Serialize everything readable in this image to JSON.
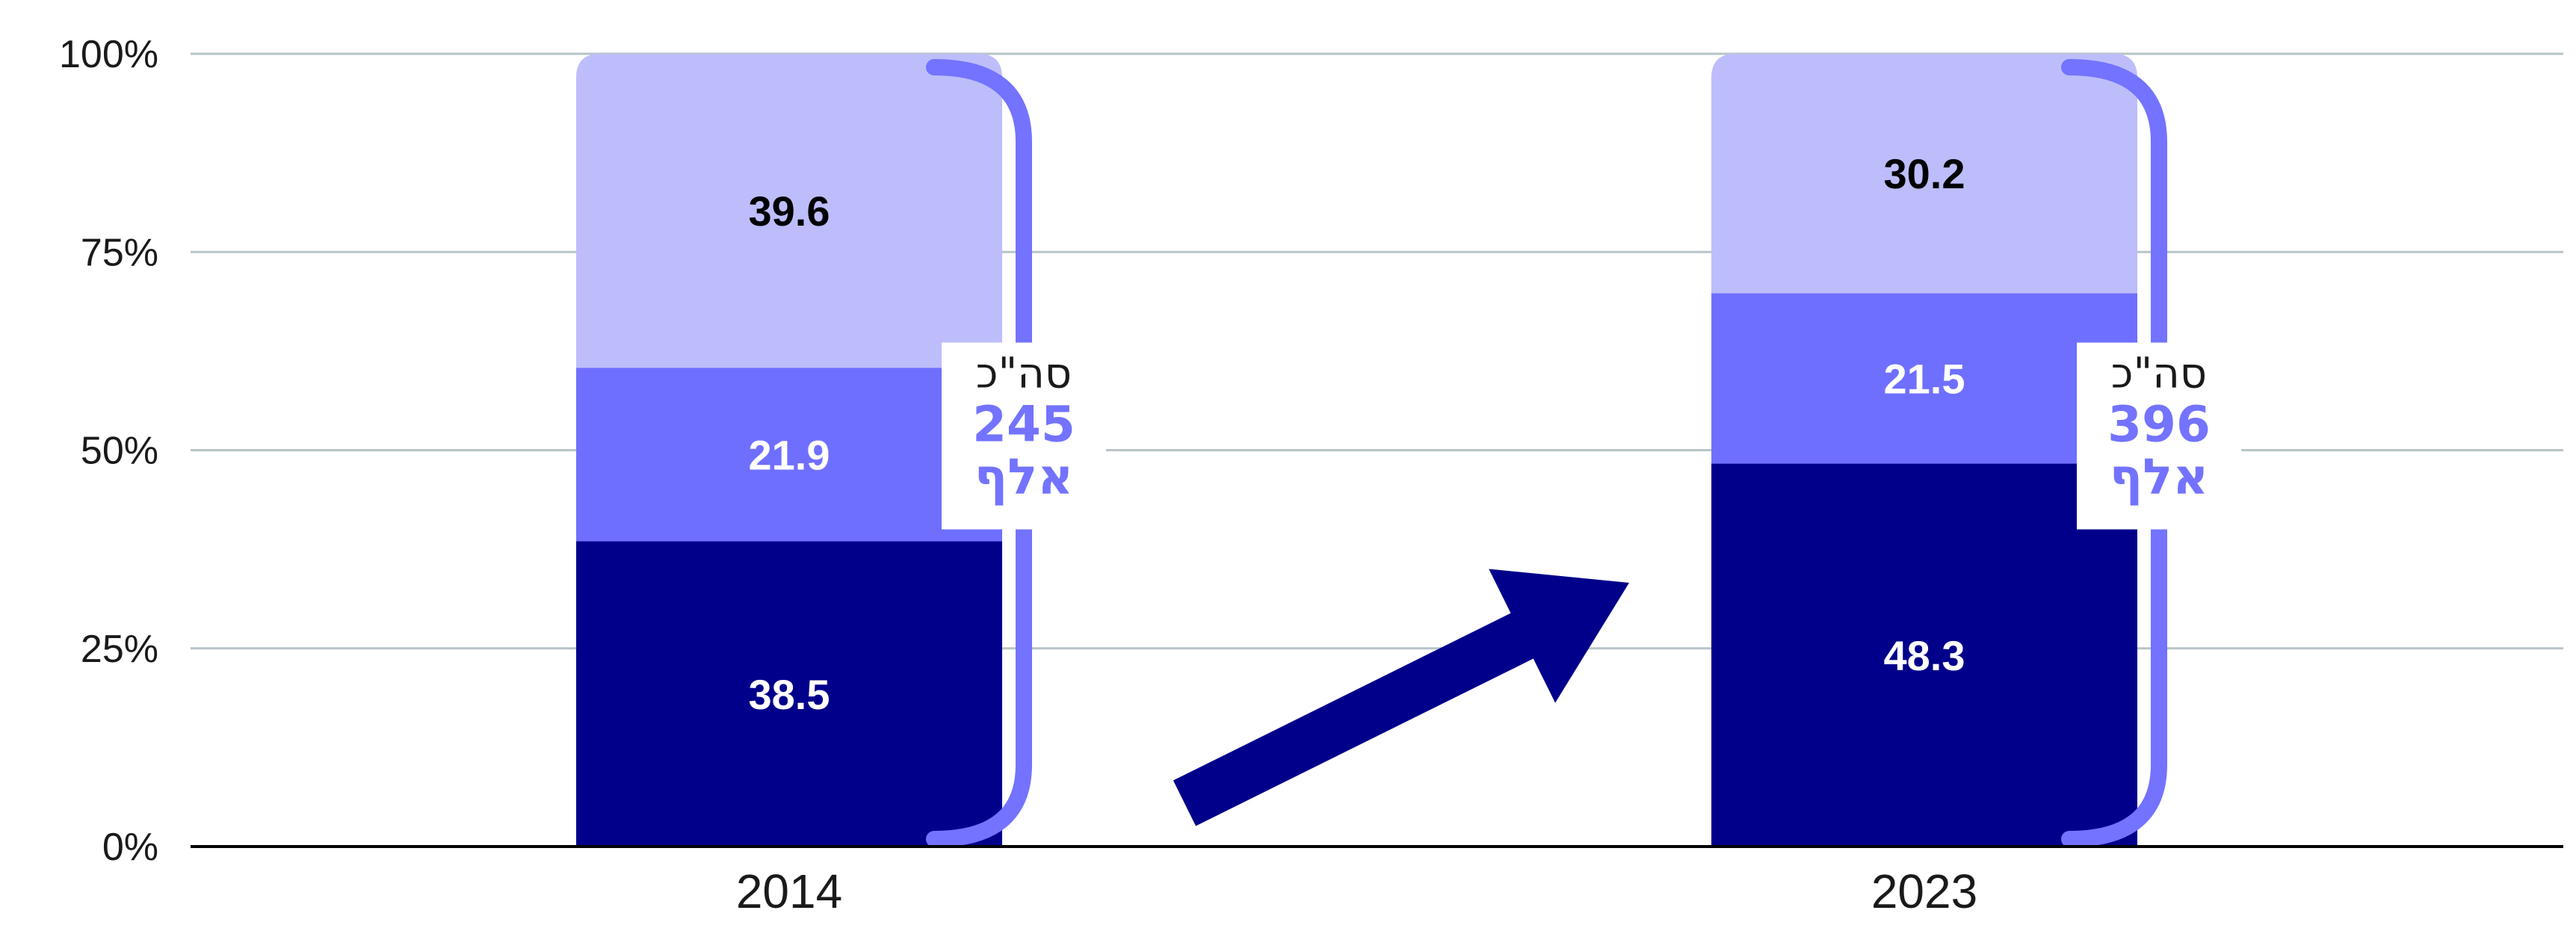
{
  "chart_data": {
    "type": "bar",
    "stacked": true,
    "categories": [
      "2014",
      "2023"
    ],
    "series": [
      {
        "values": [
          38.5,
          48.3
        ],
        "color": "#00008b"
      },
      {
        "values": [
          21.9,
          21.5
        ],
        "color": "#6f6fff"
      },
      {
        "values": [
          39.6,
          30.2
        ],
        "color": "#bdbdfc"
      }
    ],
    "ylim": [
      0,
      100
    ],
    "yticks": [
      "0%",
      "25%",
      "50%",
      "75%",
      "100%"
    ],
    "grid": true,
    "totals": [
      {
        "caption": "סה\"כ",
        "value": "245",
        "unit": "אלף"
      },
      {
        "caption": "סה\"כ",
        "value": "396",
        "unit": "אלף"
      }
    ],
    "bracket_color": "#7373ff",
    "arrow_color": "#00008b",
    "grid_color": "#b7c4c8",
    "axis_color": "#000000"
  }
}
